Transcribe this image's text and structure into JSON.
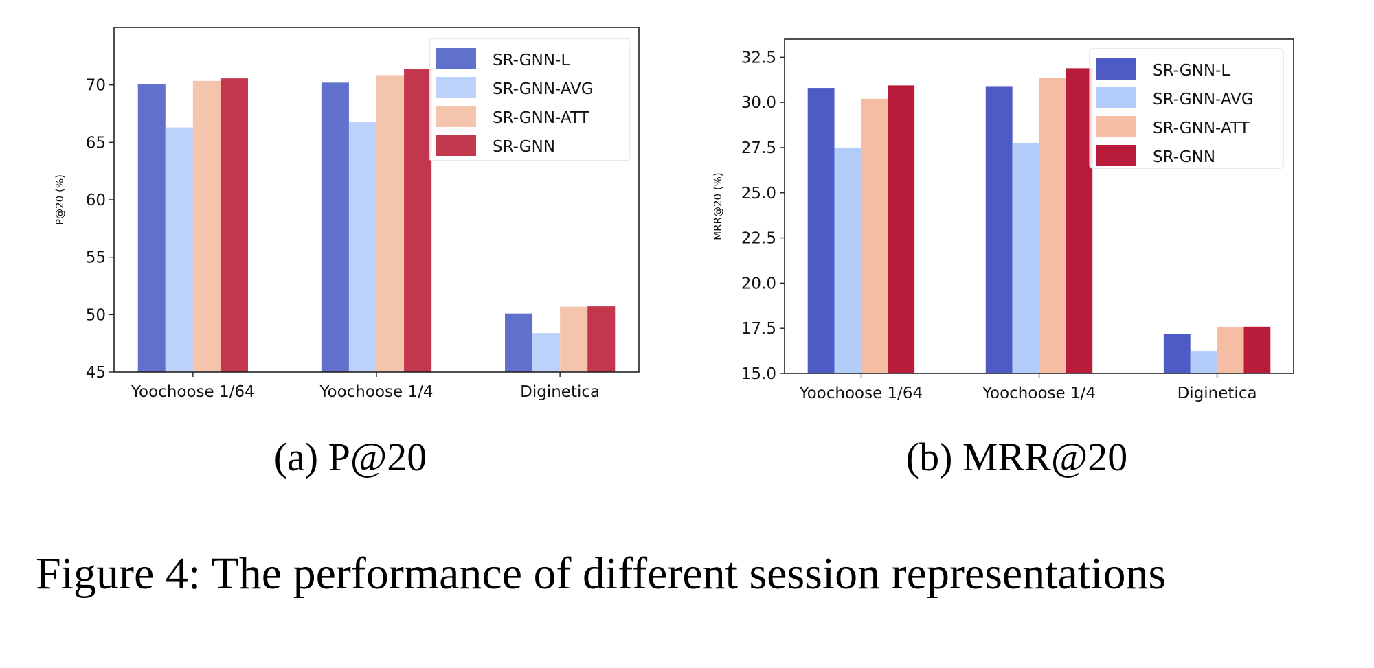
{
  "chart_data": [
    {
      "type": "bar",
      "title": "(a) P@20",
      "xlabel": "",
      "ylabel": "P@20 (%)",
      "ylim": [
        45,
        75
      ],
      "yticks": [
        "45",
        "50",
        "55",
        "60",
        "65",
        "70"
      ],
      "ytick_values": [
        45,
        50,
        55,
        60,
        65,
        70
      ],
      "categories": [
        "Yoochoose 1/64",
        "Yoochoose 1/4",
        "Diginetica"
      ],
      "legend_position": "top-right",
      "series": [
        {
          "name": "SR-GNN-L",
          "color": "#6170cb",
          "values": [
            70.1,
            70.2,
            50.1
          ]
        },
        {
          "name": "SR-GNN-AVG",
          "color": "#bcd2fa",
          "values": [
            66.3,
            66.8,
            48.4
          ]
        },
        {
          "name": "SR-GNN-ATT",
          "color": "#f5c4ad",
          "values": [
            70.35,
            70.85,
            50.7
          ]
        },
        {
          "name": "SR-GNN",
          "color": "#c2364e",
          "values": [
            70.57,
            71.36,
            50.73
          ]
        }
      ]
    },
    {
      "type": "bar",
      "title": "(b) MRR@20",
      "xlabel": "",
      "ylabel": "MRR@20 (%)",
      "ylim": [
        15,
        33.5
      ],
      "yticks": [
        "15.0",
        "17.5",
        "20.0",
        "22.5",
        "25.0",
        "27.5",
        "30.0",
        "32.5"
      ],
      "ytick_values": [
        15,
        17.5,
        20,
        22.5,
        25,
        27.5,
        30,
        32.5
      ],
      "categories": [
        "Yoochoose 1/64",
        "Yoochoose 1/4",
        "Diginetica"
      ],
      "legend_position": "top-right",
      "series": [
        {
          "name": "SR-GNN-L",
          "color": "#4f5bc4",
          "values": [
            30.8,
            30.9,
            17.2
          ]
        },
        {
          "name": "SR-GNN-AVG",
          "color": "#b2cdfa",
          "values": [
            27.5,
            27.75,
            16.25
          ]
        },
        {
          "name": "SR-GNN-ATT",
          "color": "#f5bda4",
          "values": [
            30.2,
            31.35,
            17.56
          ]
        },
        {
          "name": "SR-GNN",
          "color": "#b91c3b",
          "values": [
            30.94,
            31.89,
            17.59
          ]
        }
      ]
    }
  ],
  "caption": "Figure 4: The performance of different session representations"
}
